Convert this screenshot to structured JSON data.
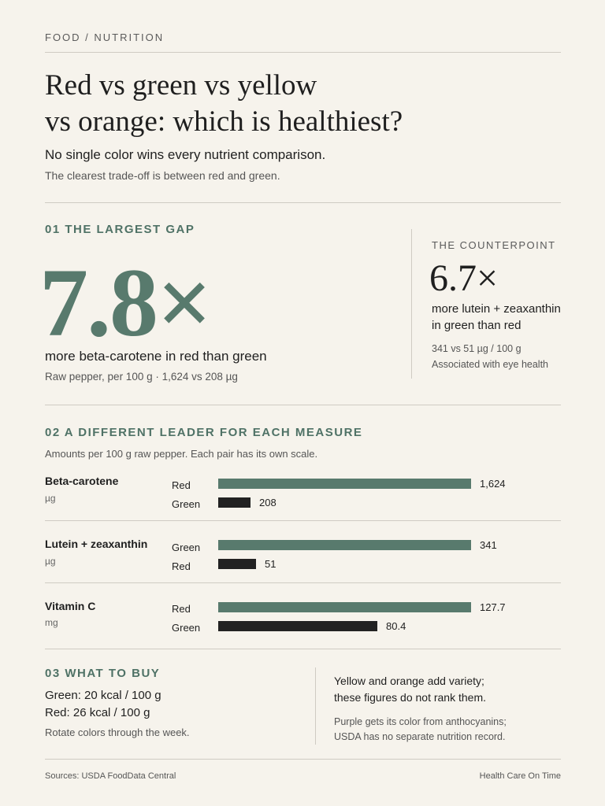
{
  "header": {
    "kicker": "FOOD / NUTRITION",
    "title_line1": "Red vs green vs yellow",
    "title_line2": "vs orange: which is healthiest?",
    "subtitle": "No single color wins every nutrient comparison.",
    "subnote": "The clearest trade-off is between red and green."
  },
  "section1": {
    "label": "01 THE LARGEST GAP",
    "big_number": "7.8×",
    "description": "more beta-carotene in red than green",
    "note": "Raw pepper, per 100 g · 1,624 vs 208 µg",
    "counterpoint": {
      "label": "THE COUNTERPOINT",
      "number": "6.7×",
      "description_line1": "more lutein + zeaxanthin",
      "description_line2": "in green than red",
      "note_line1": "341 vs 51 µg / 100 g",
      "note_line2": "Associated with eye health"
    }
  },
  "section2": {
    "label": "02 A DIFFERENT LEADER FOR EACH MEASURE",
    "note": "Amounts per 100 g raw pepper. Each pair has its own scale.",
    "measures": [
      {
        "name": "Beta-carotene",
        "unit": "µg",
        "bars": [
          {
            "label": "Red",
            "value": 1624,
            "display": "1,624",
            "lead": true
          },
          {
            "label": "Green",
            "value": 208,
            "display": "208",
            "lead": false
          }
        ]
      },
      {
        "name": "Lutein + zeaxanthin",
        "unit": "µg",
        "bars": [
          {
            "label": "Green",
            "value": 341,
            "display": "341",
            "lead": true
          },
          {
            "label": "Red",
            "value": 51,
            "display": "51",
            "lead": false
          }
        ]
      },
      {
        "name": "Vitamin C",
        "unit": "mg",
        "bars": [
          {
            "label": "Red",
            "value": 127.7,
            "display": "127.7",
            "lead": true
          },
          {
            "label": "Green",
            "value": 80.4,
            "display": "80.4",
            "lead": false
          }
        ]
      }
    ]
  },
  "section3": {
    "label": "03 WHAT TO BUY",
    "line1": "Green: 20 kcal / 100 g",
    "line2": "Red: 26 kcal / 100 g",
    "note": "Rotate colors through the week.",
    "right_text_line1": "Yellow and orange add variety;",
    "right_text_line2": "these figures do not rank them.",
    "right_note_line1": "Purple gets its color from anthocyanins;",
    "right_note_line2": "USDA has no separate nutrition record."
  },
  "footer": {
    "sources": "Sources: USDA FoodData Central",
    "brand": "Health Care On Time"
  },
  "colors": {
    "accent": "#587a6d",
    "secondary_bar": "#222222",
    "background": "#f6f3ec"
  }
}
